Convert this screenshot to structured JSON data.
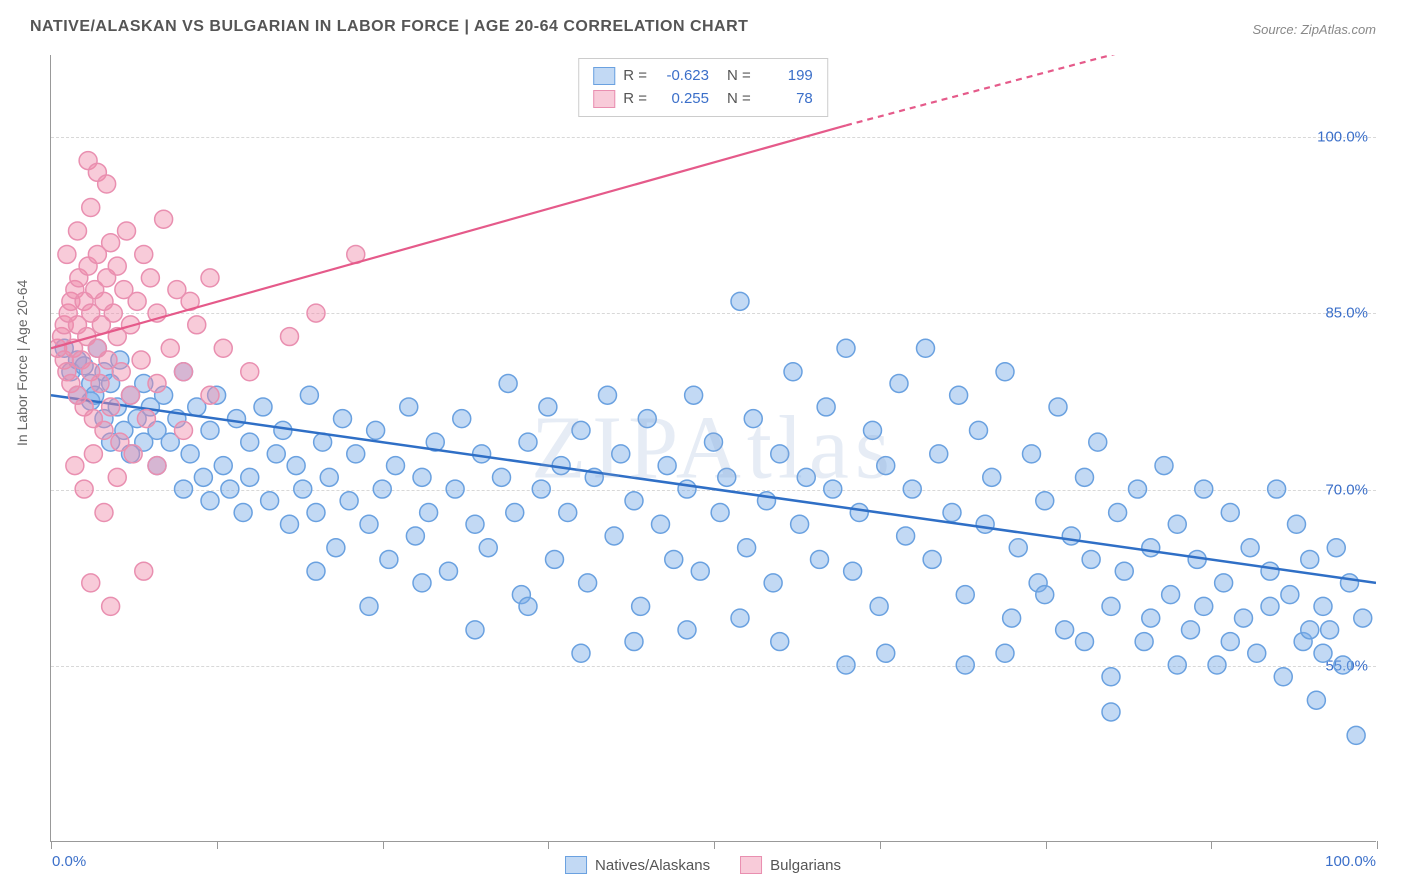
{
  "title": "NATIVE/ALASKAN VS BULGARIAN IN LABOR FORCE | AGE 20-64 CORRELATION CHART",
  "source": "Source: ZipAtlas.com",
  "watermark": "ZIPAtlas",
  "ylabel": "In Labor Force | Age 20-64",
  "xlim": [
    0,
    100
  ],
  "ylim": [
    40,
    107
  ],
  "ytick_values": [
    55.0,
    70.0,
    85.0,
    100.0
  ],
  "ytick_labels": [
    "55.0%",
    "70.0%",
    "85.0%",
    "100.0%"
  ],
  "xtick_values": [
    0,
    12.5,
    25,
    37.5,
    50,
    62.5,
    75,
    87.5,
    100
  ],
  "xaxis_label_left": "0.0%",
  "xaxis_label_right": "100.0%",
  "grid_color": "#d8d8d8",
  "axis_color": "#999999",
  "background_color": "#ffffff",
  "series": [
    {
      "name": "Natives/Alaskans",
      "fill": "rgba(120,170,230,0.45)",
      "stroke": "#6aa1e0",
      "line_color": "#2f6fc6",
      "line_width": 2.5,
      "marker_r": 9,
      "R": "-0.623",
      "N": "199",
      "trend": {
        "x1": 0,
        "y1": 78,
        "x2": 100,
        "y2": 62
      },
      "points": [
        [
          1,
          82
        ],
        [
          1.5,
          80
        ],
        [
          2,
          81
        ],
        [
          2,
          78
        ],
        [
          2.5,
          80.5
        ],
        [
          3,
          79
        ],
        [
          3,
          77.5
        ],
        [
          3.3,
          78
        ],
        [
          3.5,
          82
        ],
        [
          4,
          80
        ],
        [
          4,
          76
        ],
        [
          4.5,
          79
        ],
        [
          4.5,
          74
        ],
        [
          5,
          77
        ],
        [
          5.2,
          81
        ],
        [
          5.5,
          75
        ],
        [
          6,
          78
        ],
        [
          6,
          73
        ],
        [
          6.5,
          76
        ],
        [
          7,
          79
        ],
        [
          7,
          74
        ],
        [
          7.5,
          77
        ],
        [
          8,
          75
        ],
        [
          8,
          72
        ],
        [
          8.5,
          78
        ],
        [
          9,
          74
        ],
        [
          9.5,
          76
        ],
        [
          10,
          70
        ],
        [
          10,
          80
        ],
        [
          10.5,
          73
        ],
        [
          11,
          77
        ],
        [
          11.5,
          71
        ],
        [
          12,
          75
        ],
        [
          12,
          69
        ],
        [
          12.5,
          78
        ],
        [
          13,
          72
        ],
        [
          13.5,
          70
        ],
        [
          14,
          76
        ],
        [
          14.5,
          68
        ],
        [
          15,
          74
        ],
        [
          15,
          71
        ],
        [
          16,
          77
        ],
        [
          16.5,
          69
        ],
        [
          17,
          73
        ],
        [
          17.5,
          75
        ],
        [
          18,
          67
        ],
        [
          18.5,
          72
        ],
        [
          19,
          70
        ],
        [
          19.5,
          78
        ],
        [
          20,
          68
        ],
        [
          20.5,
          74
        ],
        [
          21,
          71
        ],
        [
          21.5,
          65
        ],
        [
          22,
          76
        ],
        [
          22.5,
          69
        ],
        [
          23,
          73
        ],
        [
          24,
          67
        ],
        [
          24.5,
          75
        ],
        [
          25,
          70
        ],
        [
          25.5,
          64
        ],
        [
          26,
          72
        ],
        [
          27,
          77
        ],
        [
          27.5,
          66
        ],
        [
          28,
          71
        ],
        [
          28.5,
          68
        ],
        [
          29,
          74
        ],
        [
          30,
          63
        ],
        [
          30.5,
          70
        ],
        [
          31,
          76
        ],
        [
          32,
          67
        ],
        [
          32.5,
          73
        ],
        [
          33,
          65
        ],
        [
          34,
          71
        ],
        [
          34.5,
          79
        ],
        [
          35,
          68
        ],
        [
          35.5,
          61
        ],
        [
          36,
          74
        ],
        [
          37,
          70
        ],
        [
          37.5,
          77
        ],
        [
          38,
          64
        ],
        [
          38.5,
          72
        ],
        [
          39,
          68
        ],
        [
          40,
          75
        ],
        [
          40.5,
          62
        ],
        [
          41,
          71
        ],
        [
          42,
          78
        ],
        [
          42.5,
          66
        ],
        [
          43,
          73
        ],
        [
          44,
          69
        ],
        [
          44.5,
          60
        ],
        [
          45,
          76
        ],
        [
          46,
          67
        ],
        [
          46.5,
          72
        ],
        [
          47,
          64
        ],
        [
          48,
          70
        ],
        [
          48.5,
          78
        ],
        [
          49,
          63
        ],
        [
          50,
          74
        ],
        [
          50.5,
          68
        ],
        [
          51,
          71
        ],
        [
          52,
          86
        ],
        [
          52.5,
          65
        ],
        [
          53,
          76
        ],
        [
          54,
          69
        ],
        [
          54.5,
          62
        ],
        [
          55,
          73
        ],
        [
          56,
          80
        ],
        [
          56.5,
          67
        ],
        [
          57,
          71
        ],
        [
          58,
          64
        ],
        [
          58.5,
          77
        ],
        [
          59,
          70
        ],
        [
          60,
          82
        ],
        [
          60.5,
          63
        ],
        [
          61,
          68
        ],
        [
          62,
          75
        ],
        [
          62.5,
          60
        ],
        [
          63,
          72
        ],
        [
          64,
          79
        ],
        [
          64.5,
          66
        ],
        [
          65,
          70
        ],
        [
          66,
          82
        ],
        [
          66.5,
          64
        ],
        [
          67,
          73
        ],
        [
          68,
          68
        ],
        [
          68.5,
          78
        ],
        [
          69,
          61
        ],
        [
          70,
          75
        ],
        [
          70.5,
          67
        ],
        [
          71,
          71
        ],
        [
          72,
          80
        ],
        [
          72.5,
          59
        ],
        [
          73,
          65
        ],
        [
          74,
          73
        ],
        [
          74.5,
          62
        ],
        [
          75,
          69
        ],
        [
          76,
          77
        ],
        [
          76.5,
          58
        ],
        [
          77,
          66
        ],
        [
          78,
          71
        ],
        [
          78.5,
          64
        ],
        [
          79,
          74
        ],
        [
          80,
          60
        ],
        [
          80.5,
          68
        ],
        [
          81,
          63
        ],
        [
          82,
          70
        ],
        [
          82.5,
          57
        ],
        [
          83,
          65
        ],
        [
          84,
          72
        ],
        [
          84.5,
          61
        ],
        [
          85,
          67
        ],
        [
          86,
          58
        ],
        [
          86.5,
          64
        ],
        [
          87,
          70
        ],
        [
          88,
          55
        ],
        [
          88.5,
          62
        ],
        [
          89,
          68
        ],
        [
          90,
          59
        ],
        [
          90.5,
          65
        ],
        [
          91,
          56
        ],
        [
          92,
          63
        ],
        [
          92.5,
          70
        ],
        [
          93,
          54
        ],
        [
          93.5,
          61
        ],
        [
          94,
          67
        ],
        [
          94.5,
          57
        ],
        [
          95,
          64
        ],
        [
          95.5,
          52
        ],
        [
          96,
          60
        ],
        [
          96.5,
          58
        ],
        [
          97,
          65
        ],
        [
          97.5,
          55
        ],
        [
          98,
          62
        ],
        [
          98.5,
          49
        ],
        [
          99,
          59
        ],
        [
          95,
          58
        ],
        [
          96,
          56
        ],
        [
          92,
          60
        ],
        [
          89,
          57
        ],
        [
          87,
          60
        ],
        [
          85,
          55
        ],
        [
          83,
          59
        ],
        [
          80,
          54
        ],
        [
          78,
          57
        ],
        [
          75,
          61
        ],
        [
          72,
          56
        ],
        [
          69,
          55
        ],
        [
          63,
          56
        ],
        [
          60,
          55
        ],
        [
          55,
          57
        ],
        [
          52,
          59
        ],
        [
          48,
          58
        ],
        [
          44,
          57
        ],
        [
          40,
          56
        ],
        [
          36,
          60
        ],
        [
          32,
          58
        ],
        [
          28,
          62
        ],
        [
          24,
          60
        ],
        [
          20,
          63
        ],
        [
          80,
          51
        ]
      ]
    },
    {
      "name": "Bulgarians",
      "fill": "rgba(240,140,170,0.45)",
      "stroke": "#e98fb0",
      "line_color": "#e55a8a",
      "line_width": 2.2,
      "marker_r": 9,
      "R": "0.255",
      "N": "78",
      "trend": {
        "x1": 0,
        "y1": 82,
        "x2": 60,
        "y2": 101,
        "x3": 100,
        "y3": 113
      },
      "trend_dash_after_x": 60,
      "points": [
        [
          0.5,
          82
        ],
        [
          0.8,
          83
        ],
        [
          1,
          81
        ],
        [
          1,
          84
        ],
        [
          1.2,
          80
        ],
        [
          1.3,
          85
        ],
        [
          1.5,
          79
        ],
        [
          1.5,
          86
        ],
        [
          1.7,
          82
        ],
        [
          1.8,
          87
        ],
        [
          2,
          78
        ],
        [
          2,
          84
        ],
        [
          2.1,
          88
        ],
        [
          2.3,
          81
        ],
        [
          2.5,
          86
        ],
        [
          2.5,
          77
        ],
        [
          2.7,
          83
        ],
        [
          2.8,
          89
        ],
        [
          3,
          80
        ],
        [
          3,
          85
        ],
        [
          3.2,
          76
        ],
        [
          3.3,
          87
        ],
        [
          3.5,
          82
        ],
        [
          3.5,
          90
        ],
        [
          3.7,
          79
        ],
        [
          3.8,
          84
        ],
        [
          4,
          86
        ],
        [
          4,
          75
        ],
        [
          4.2,
          88
        ],
        [
          4.3,
          81
        ],
        [
          4.5,
          91
        ],
        [
          4.5,
          77
        ],
        [
          4.7,
          85
        ],
        [
          5,
          83
        ],
        [
          5,
          89
        ],
        [
          5.2,
          74
        ],
        [
          5.3,
          80
        ],
        [
          5.5,
          87
        ],
        [
          5.7,
          92
        ],
        [
          6,
          78
        ],
        [
          6,
          84
        ],
        [
          6.2,
          73
        ],
        [
          6.5,
          86
        ],
        [
          6.8,
          81
        ],
        [
          7,
          90
        ],
        [
          7.2,
          76
        ],
        [
          7.5,
          88
        ],
        [
          8,
          79
        ],
        [
          8,
          85
        ],
        [
          8.5,
          93
        ],
        [
          9,
          82
        ],
        [
          9.5,
          87
        ],
        [
          10,
          80
        ],
        [
          10.5,
          86
        ],
        [
          11,
          84
        ],
        [
          12,
          88
        ],
        [
          13,
          82
        ],
        [
          2.8,
          98
        ],
        [
          3.5,
          97
        ],
        [
          4.2,
          96
        ],
        [
          1.8,
          72
        ],
        [
          2.5,
          70
        ],
        [
          3.2,
          73
        ],
        [
          4,
          68
        ],
        [
          5,
          71
        ],
        [
          3,
          62
        ],
        [
          4.5,
          60
        ],
        [
          8,
          72
        ],
        [
          10,
          75
        ],
        [
          12,
          78
        ],
        [
          15,
          80
        ],
        [
          18,
          83
        ],
        [
          20,
          85
        ],
        [
          23,
          90
        ],
        [
          7,
          63
        ],
        [
          1.2,
          90
        ],
        [
          2,
          92
        ],
        [
          3,
          94
        ]
      ]
    }
  ],
  "legend_top": {
    "rows": [
      {
        "swatch_fill": "rgba(120,170,230,0.45)",
        "swatch_stroke": "#6aa1e0",
        "R_label": "R =",
        "R_val": "-0.623",
        "N_label": "N =",
        "N_val": "199"
      },
      {
        "swatch_fill": "rgba(240,140,170,0.45)",
        "swatch_stroke": "#e98fb0",
        "R_label": "R =",
        "R_val": "0.255",
        "N_label": "N =",
        "N_val": "78"
      }
    ]
  },
  "legend_bottom": [
    {
      "swatch_fill": "rgba(120,170,230,0.45)",
      "swatch_stroke": "#6aa1e0",
      "label": "Natives/Alaskans"
    },
    {
      "swatch_fill": "rgba(240,140,170,0.45)",
      "swatch_stroke": "#e98fb0",
      "label": "Bulgarians"
    }
  ]
}
